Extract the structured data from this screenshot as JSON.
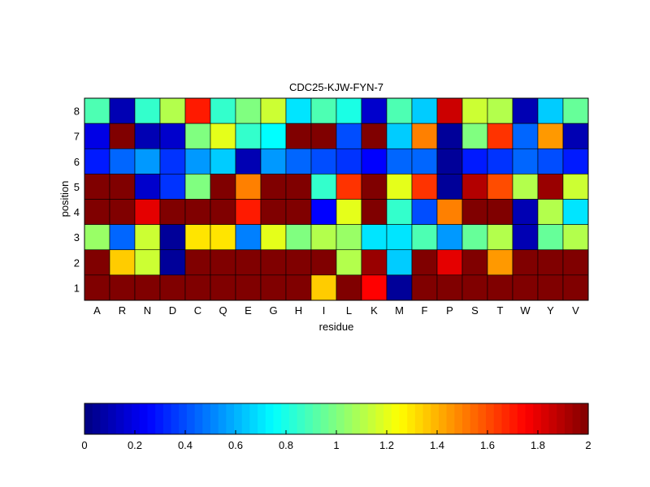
{
  "chart_data": [
    {
      "type": "heatmap",
      "title": "CDC25-KJW-FYN-7",
      "xlabel": "residue",
      "ylabel": "position",
      "x_categories": [
        "A",
        "R",
        "N",
        "D",
        "C",
        "Q",
        "E",
        "G",
        "H",
        "I",
        "L",
        "K",
        "M",
        "F",
        "P",
        "S",
        "T",
        "W",
        "Y",
        "V"
      ],
      "y_categories": [
        "8",
        "7",
        "6",
        "5",
        "4",
        "3",
        "2",
        "1"
      ],
      "colormap": "jet",
      "clim": [
        0,
        2
      ],
      "values": [
        [
          0.9,
          0.1,
          0.85,
          1.1,
          1.7,
          0.85,
          1.0,
          1.15,
          0.7,
          0.9,
          0.8,
          0.15,
          0.9,
          0.65,
          1.85,
          1.15,
          1.1,
          0.1,
          0.65,
          0.95
        ],
        [
          0.2,
          2.0,
          0.1,
          0.15,
          1.0,
          1.2,
          0.85,
          0.75,
          2.0,
          2.0,
          0.4,
          2.0,
          0.65,
          1.5,
          0.05,
          1.0,
          1.65,
          0.45,
          1.45,
          0.1
        ],
        [
          0.3,
          0.45,
          0.55,
          0.35,
          0.55,
          0.65,
          0.1,
          0.55,
          0.45,
          0.4,
          0.35,
          0.25,
          0.45,
          0.45,
          0.05,
          0.3,
          0.35,
          0.45,
          0.4,
          0.3
        ],
        [
          2.0,
          2.0,
          0.15,
          0.35,
          1.0,
          2.0,
          1.5,
          2.0,
          2.0,
          0.85,
          1.65,
          2.0,
          1.2,
          1.65,
          0.05,
          1.9,
          1.6,
          1.1,
          1.95,
          1.15
        ],
        [
          2.0,
          2.0,
          1.8,
          2.0,
          2.0,
          2.0,
          1.7,
          2.0,
          2.0,
          0.25,
          1.2,
          2.0,
          0.85,
          0.4,
          1.5,
          2.0,
          2.0,
          0.1,
          1.1,
          0.7
        ],
        [
          1.05,
          0.45,
          1.15,
          0.05,
          1.3,
          1.3,
          0.5,
          1.2,
          1.0,
          1.1,
          1.05,
          0.7,
          0.7,
          0.9,
          0.55,
          0.95,
          1.1,
          0.1,
          0.95,
          1.1
        ],
        [
          2.0,
          1.35,
          1.15,
          0.05,
          2.0,
          2.0,
          2.0,
          2.0,
          2.0,
          2.0,
          1.1,
          1.95,
          0.65,
          2.0,
          1.8,
          2.0,
          1.45,
          2.0,
          2.0,
          2.0
        ],
        [
          2.0,
          2.0,
          2.0,
          2.0,
          2.0,
          2.0,
          2.0,
          2.0,
          2.0,
          1.35,
          2.0,
          1.75,
          0.05,
          2.0,
          2.0,
          2.0,
          2.0,
          2.0,
          2.0,
          2.0
        ]
      ]
    },
    {
      "type": "colorbar",
      "colormap": "jet",
      "range": [
        0,
        2
      ],
      "tick_values": [
        0,
        0.2,
        0.4,
        0.6,
        0.8,
        1,
        1.2,
        1.4,
        1.6,
        1.8,
        2
      ],
      "tick_labels": [
        "0",
        "0.2",
        "0.4",
        "0.6",
        "0.8",
        "1",
        "1.2",
        "1.4",
        "1.6",
        "1.8",
        "2"
      ]
    }
  ]
}
